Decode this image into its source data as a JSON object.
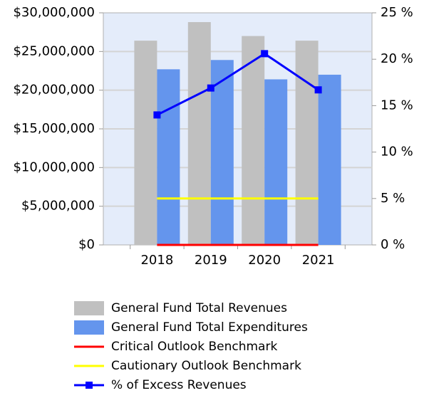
{
  "chart_data": {
    "type": "bar",
    "categories": [
      "2018",
      "2019",
      "2020",
      "2021"
    ],
    "series": [
      {
        "name": "General Fund Total Revenues",
        "type": "bar",
        "color": "#c0c0c0",
        "values": [
          26400000,
          28800000,
          27000000,
          26400000
        ]
      },
      {
        "name": "General Fund Total Expenditures",
        "type": "bar",
        "color": "#6495ed",
        "values": [
          22700000,
          23900000,
          21400000,
          22000000
        ]
      },
      {
        "name": "Critical Outlook Benchmark",
        "type": "line",
        "axis": "y2",
        "color": "#ff0000",
        "values": [
          0,
          0,
          0,
          0
        ]
      },
      {
        "name": "Cautionary Outlook Benchmark",
        "type": "line",
        "axis": "y2",
        "color": "#ffff00",
        "values": [
          5,
          5,
          5,
          5
        ]
      },
      {
        "name": "% of Excess Revenues",
        "type": "line",
        "axis": "y2",
        "color": "#0000ff",
        "marker": true,
        "values": [
          14.0,
          16.9,
          20.6,
          16.7
        ]
      }
    ],
    "ylim": [
      0,
      30000000
    ],
    "yticks": [
      {
        "value": 0,
        "label": "$0"
      },
      {
        "value": 5000000,
        "label": "$5,000,000"
      },
      {
        "value": 10000000,
        "label": "$10,000,000"
      },
      {
        "value": 15000000,
        "label": "$15,000,000"
      },
      {
        "value": 20000000,
        "label": "$20,000,000"
      },
      {
        "value": 25000000,
        "label": "$25,000,000"
      },
      {
        "value": 30000000,
        "label": "$30,000,000"
      }
    ],
    "y2lim": [
      0,
      25
    ],
    "y2ticks": [
      {
        "value": 0,
        "label": "0 %"
      },
      {
        "value": 5,
        "label": "5 %"
      },
      {
        "value": 10,
        "label": "10 %"
      },
      {
        "value": 15,
        "label": "15 %"
      },
      {
        "value": 20,
        "label": "20 %"
      },
      {
        "value": 25,
        "label": "25 %"
      }
    ],
    "grid": true,
    "legend": "bottom"
  }
}
